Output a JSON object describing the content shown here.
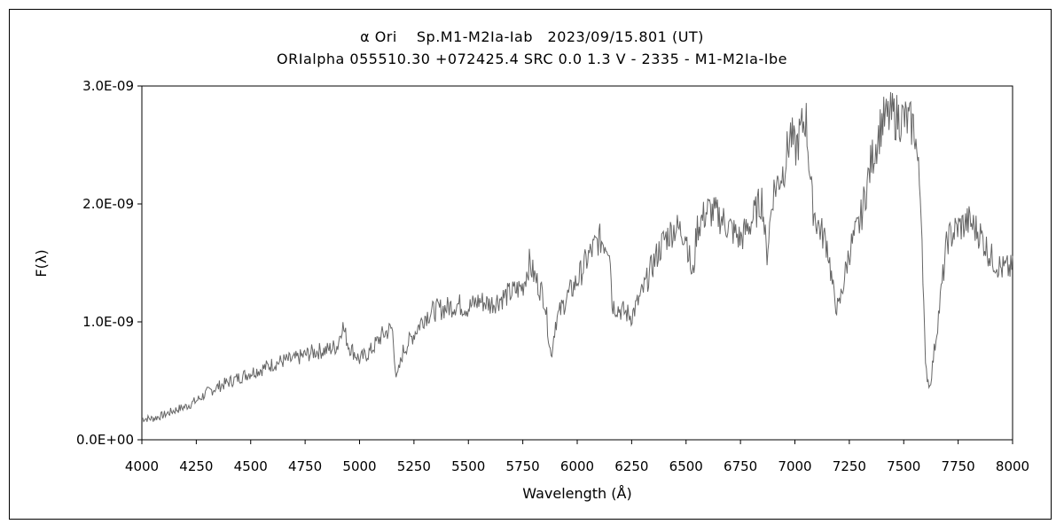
{
  "chart_data": {
    "type": "line",
    "title": "α Ori　 Sp.M1-M2Ia-Iab　2023/09/15.801 (UT)",
    "subtitle": "ORIalpha 055510.30 +072425.4 SRC 0.0 1.3 V - 2335 - M1-M2Ia-Ibe",
    "xlabel": "Wavelength (Å)",
    "ylabel": "F(λ)",
    "xlim": [
      4000,
      8000
    ],
    "ylim": [
      0,
      3e-09
    ],
    "x_ticks": [
      4000,
      4250,
      4500,
      4750,
      5000,
      5250,
      5500,
      5750,
      6000,
      6250,
      6500,
      6750,
      7000,
      7250,
      7500,
      7750,
      8000
    ],
    "x_tick_labels": [
      "4000",
      "4250",
      "4500",
      "4750",
      "5000",
      "5250",
      "5500",
      "5750",
      "6000",
      "6250",
      "6500",
      "6750",
      "7000",
      "7250",
      "7500",
      "7750",
      "8000"
    ],
    "y_ticks": [
      0,
      1e-09,
      2e-09,
      3e-09
    ],
    "y_tick_labels": [
      "0.0E+00",
      "1.0E-09",
      "2.0E-09",
      "3.0E-09"
    ],
    "grid": false,
    "line_color": "#666666",
    "series": [
      {
        "x": [
          4000,
          4050,
          4100,
          4150,
          4200,
          4250,
          4300,
          4350,
          4400,
          4450,
          4500,
          4550,
          4600,
          4650,
          4700,
          4750,
          4800,
          4850,
          4900,
          4920,
          4950,
          5000,
          5050,
          5100,
          5150,
          5170,
          5200,
          5250,
          5300,
          5350,
          5400,
          5450,
          5500,
          5550,
          5600,
          5650,
          5700,
          5750,
          5780,
          5800,
          5850,
          5880,
          5900,
          5950,
          6000,
          6050,
          6100,
          6150,
          6160,
          6200,
          6250,
          6300,
          6350,
          6400,
          6450,
          6500,
          6530,
          6550,
          6600,
          6650,
          6700,
          6750,
          6800,
          6850,
          6870,
          6900,
          6950,
          6980,
          7000,
          7050,
          7080,
          7100,
          7150,
          7180,
          7200,
          7250,
          7300,
          7350,
          7400,
          7450,
          7500,
          7550,
          7580,
          7600,
          7620,
          7650,
          7700,
          7750,
          7800,
          7850,
          7900,
          7950,
          8000
        ],
        "y": [
          1.8e-10,
          1.8e-10,
          2.1e-10,
          2.5e-10,
          2.8e-10,
          3.3e-10,
          4e-10,
          4.5e-10,
          4.9e-10,
          5.3e-10,
          5.7e-10,
          6e-10,
          6.4e-10,
          6.7e-10,
          6.8e-10,
          7.2e-10,
          7.5e-10,
          7.6e-10,
          8e-10,
          9.8e-10,
          8e-10,
          6.8e-10,
          7.5e-10,
          8.8e-10,
          9.5e-10,
          5e-10,
          7.5e-10,
          9e-10,
          1.05e-09,
          1.1e-09,
          1.12e-09,
          1.15e-09,
          1.12e-09,
          1.18e-09,
          1.15e-09,
          1.2e-09,
          1.25e-09,
          1.3e-09,
          1.5e-09,
          1.4e-09,
          1.2e-09,
          7e-10,
          1e-09,
          1.2e-09,
          1.35e-09,
          1.55e-09,
          1.7e-09,
          1.65e-09,
          1.15e-09,
          1.1e-09,
          1.05e-09,
          1.25e-09,
          1.5e-09,
          1.7e-09,
          1.8e-09,
          1.75e-09,
          1.35e-09,
          1.8e-09,
          1.95e-09,
          1.9e-09,
          1.8e-09,
          1.7e-09,
          1.85e-09,
          2.05e-09,
          1.55e-09,
          2.1e-09,
          2.3e-09,
          2.6e-09,
          2.45e-09,
          2.75e-09,
          2e-09,
          1.85e-09,
          1.65e-09,
          1.2e-09,
          1.1e-09,
          1.6e-09,
          1.85e-09,
          2.35e-09,
          2.7e-09,
          2.75e-09,
          2.72e-09,
          2.65e-09,
          2e-09,
          6e-10,
          4.5e-10,
          9e-10,
          1.7e-09,
          1.8e-09,
          1.85e-09,
          1.75e-09,
          1.55e-09,
          1.45e-09,
          1.45e-09
        ]
      }
    ]
  }
}
